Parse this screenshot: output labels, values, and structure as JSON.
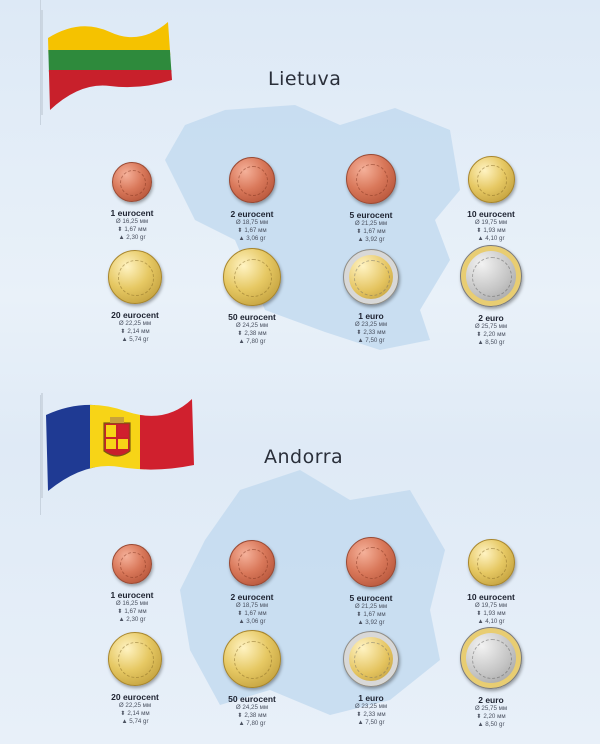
{
  "sections": [
    {
      "country": "Lietuva",
      "flag_colors": [
        "#f5c200",
        "#2e8a3c",
        "#c8202b"
      ],
      "map_color": "#c5dcef",
      "coins": [
        {
          "name": "1 eurocent",
          "diameter": "Ø 16,25 мм",
          "thickness": "1,67 мм",
          "weight": "2,30 gr",
          "metal": "copper"
        },
        {
          "name": "2 eurocent",
          "diameter": "Ø 18,75 мм",
          "thickness": "1,67 мм",
          "weight": "3,06 gr",
          "metal": "copper"
        },
        {
          "name": "5 eurocent",
          "diameter": "Ø 21,25 мм",
          "thickness": "1,67 мм",
          "weight": "3,92 gr",
          "metal": "copper"
        },
        {
          "name": "10 eurocent",
          "diameter": "Ø 19,75 мм",
          "thickness": "1,93 мм",
          "weight": "4,10 gr",
          "metal": "nordic"
        },
        {
          "name": "20 eurocent",
          "diameter": "Ø 22,25 мм",
          "thickness": "2,14 мм",
          "weight": "5,74 gr",
          "metal": "nordic"
        },
        {
          "name": "50 eurocent",
          "diameter": "Ø 24,25 мм",
          "thickness": "2,38 мм",
          "weight": "7,80 gr",
          "metal": "nordic"
        },
        {
          "name": "1 euro",
          "diameter": "Ø 23,25 мм",
          "thickness": "2,33 мм",
          "weight": "7,50 gr",
          "metal": "bimetal1"
        },
        {
          "name": "2 euro",
          "diameter": "Ø 25,75 мм",
          "thickness": "2,20 мм",
          "weight": "8,50 gr",
          "metal": "bimetal2"
        }
      ]
    },
    {
      "country": "Andorra",
      "flag_colors": [
        "#1f3a93",
        "#f7d417",
        "#d0202e"
      ],
      "map_color": "#c5dcef",
      "coins": [
        {
          "name": "1 eurocent",
          "diameter": "Ø 16,25 мм",
          "thickness": "1,67 мм",
          "weight": "2,30 gr",
          "metal": "copper"
        },
        {
          "name": "2 eurocent",
          "diameter": "Ø 18,75 мм",
          "thickness": "1,67 мм",
          "weight": "3,06 gr",
          "metal": "copper"
        },
        {
          "name": "5 eurocent",
          "diameter": "Ø 21,25 мм",
          "thickness": "1,67 мм",
          "weight": "3,92 gr",
          "metal": "copper"
        },
        {
          "name": "10 eurocent",
          "diameter": "Ø 19,75 мм",
          "thickness": "1,93 мм",
          "weight": "4,10 gr",
          "metal": "nordic"
        },
        {
          "name": "20 eurocent",
          "diameter": "Ø 22,25 мм",
          "thickness": "2,14 мм",
          "weight": "5,74 gr",
          "metal": "nordic"
        },
        {
          "name": "50 eurocent",
          "diameter": "Ø 24,25 мм",
          "thickness": "2,38 мм",
          "weight": "7,80 gr",
          "metal": "nordic"
        },
        {
          "name": "1 euro",
          "diameter": "Ø 23,25 мм",
          "thickness": "2,33 мм",
          "weight": "7,50 gr",
          "metal": "bimetal1"
        },
        {
          "name": "2 euro",
          "diameter": "Ø 25,75 мм",
          "thickness": "2,20 мм",
          "weight": "8,50 gr",
          "metal": "bimetal2"
        }
      ]
    }
  ]
}
